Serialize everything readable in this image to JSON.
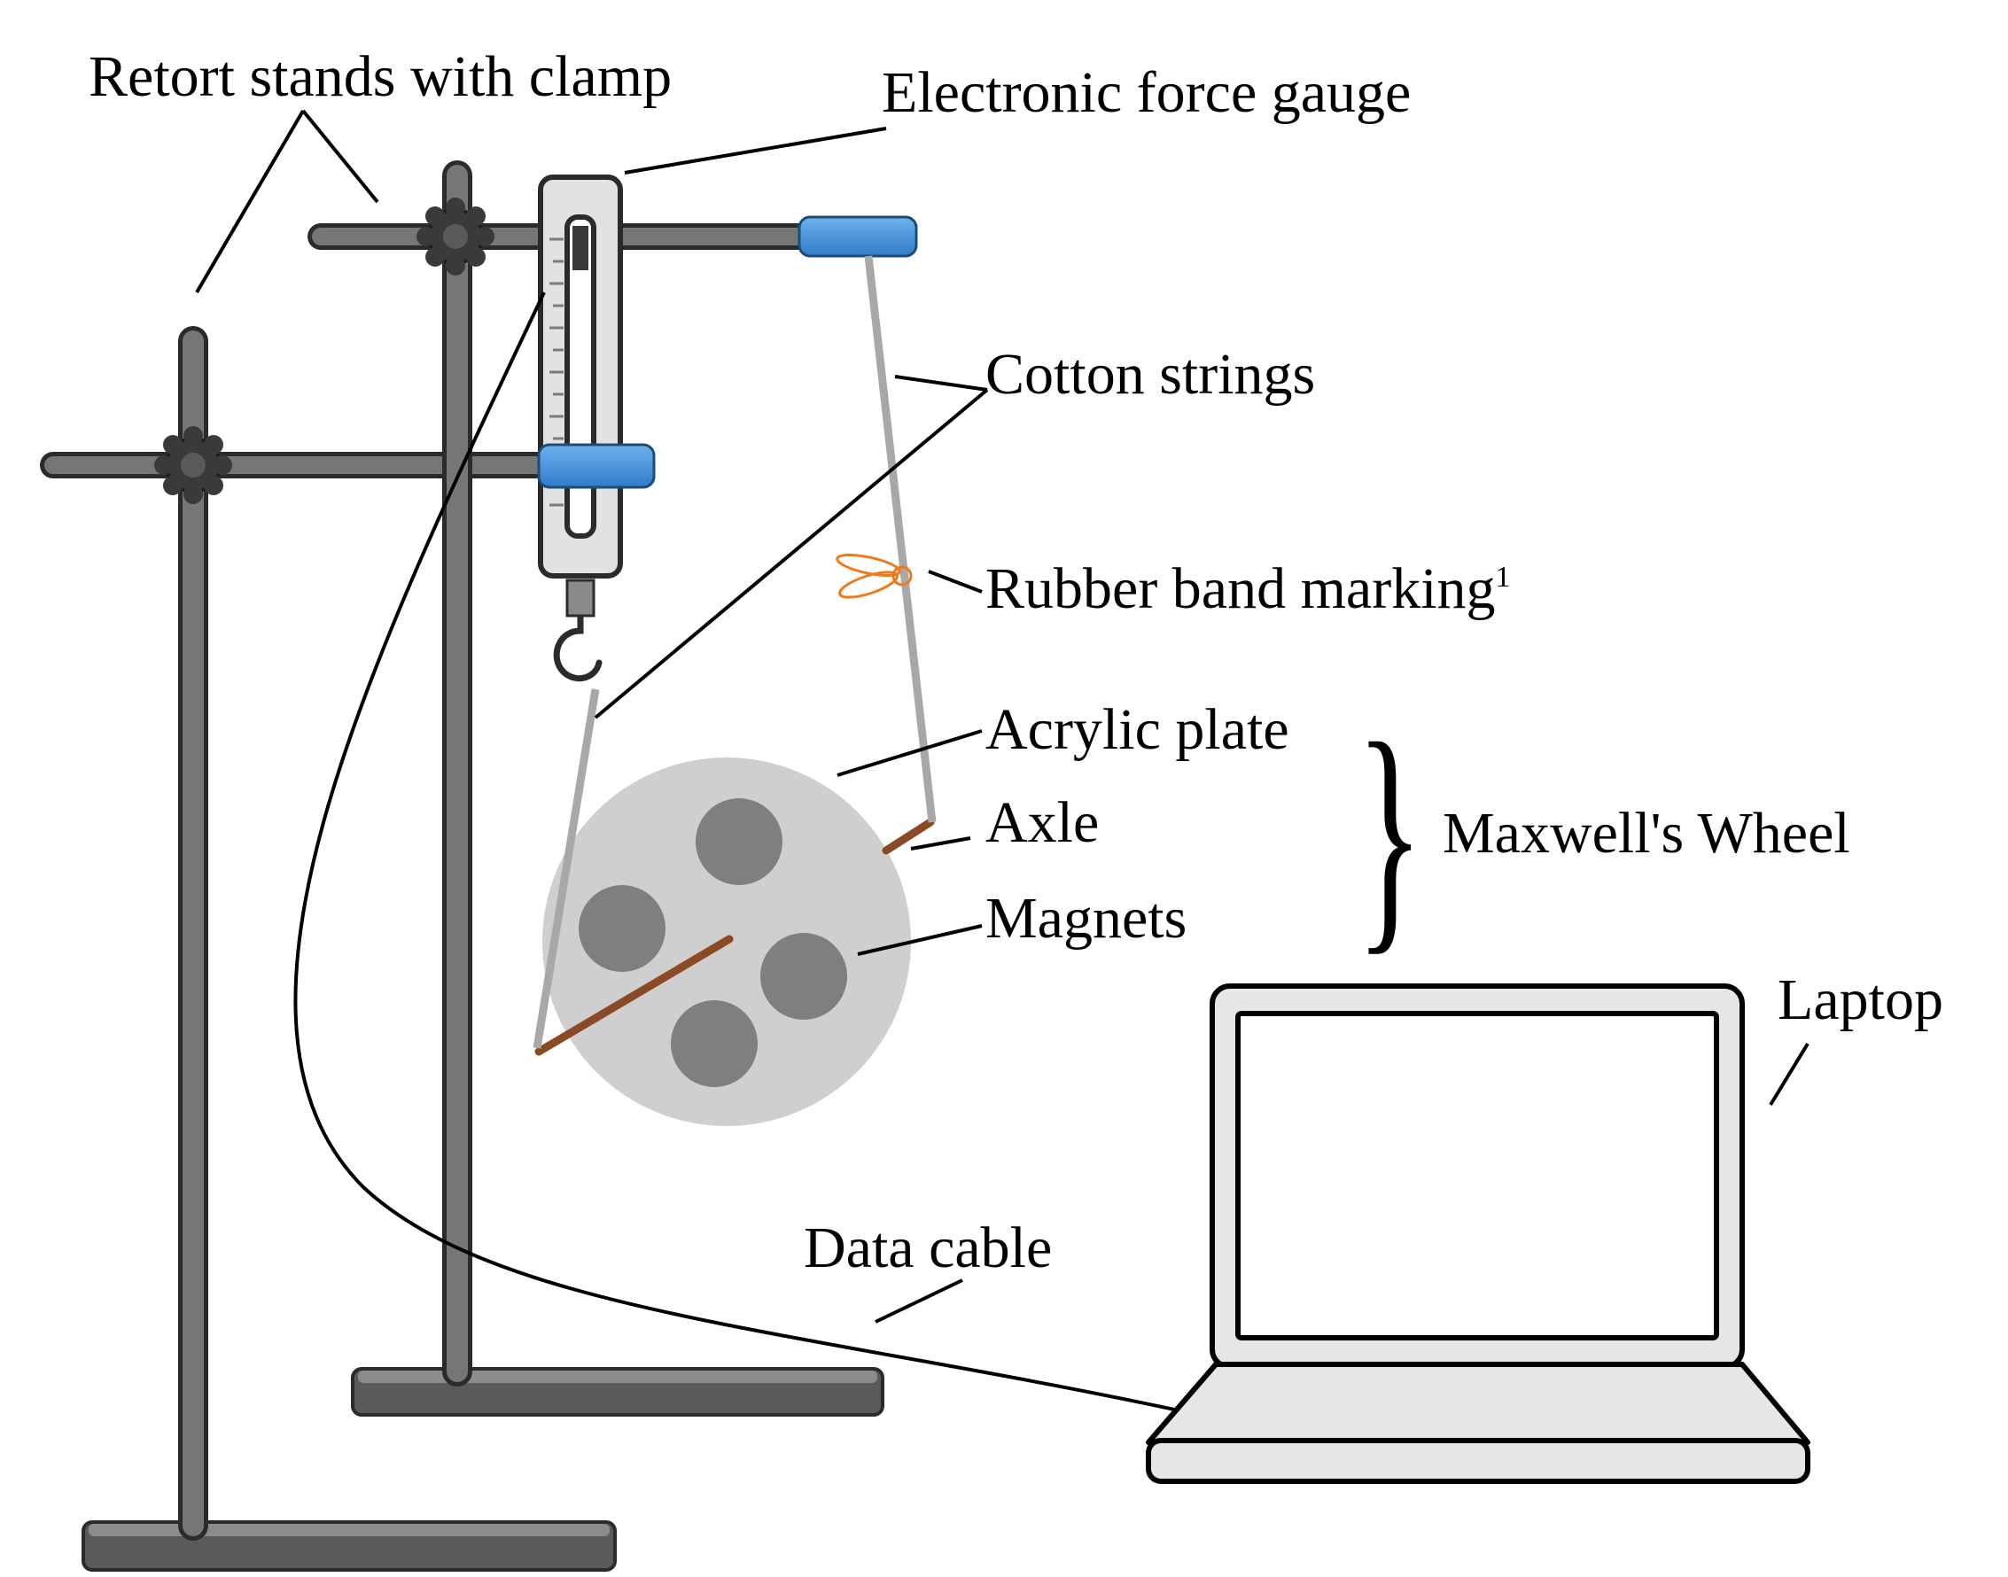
{
  "labels": {
    "retort_stands": "Retort stands with clamp",
    "force_gauge": "Electronic force gauge",
    "cotton_strings": "Cotton strings",
    "rubber_band": "Rubber band marking",
    "rubber_band_note": "1",
    "acrylic_plate": "Acrylic plate",
    "axle": "Axle",
    "magnets": "Magnets",
    "maxwells_wheel": "Maxwell's Wheel",
    "brace": "}",
    "laptop": "Laptop",
    "data_cable": "Data cable"
  },
  "colors": {
    "rod": "#5c5c5c",
    "rod_highlight": "#8a8a8a",
    "clamp_blue": "#3f8fd8",
    "gauge_body": "#e2e2e2",
    "string": "#a8a8a8",
    "rubber_band": "#f07a1a",
    "plate": "#cfcfcf",
    "magnet": "#7f7f7f",
    "axle": "#8b4a26",
    "laptop_fill": "#e6e6e6",
    "screen": "#ffffff"
  }
}
